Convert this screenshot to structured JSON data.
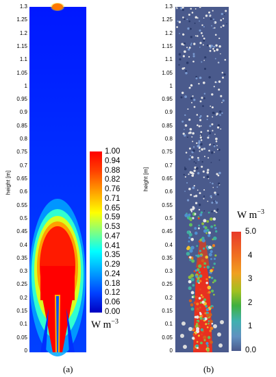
{
  "panel_a": {
    "caption": "(a)",
    "ylabel": "height [m]",
    "yticks": [
      "1.3",
      "1.25",
      "1.2",
      "1.15",
      "1.1",
      "1.05",
      "1",
      "0.95",
      "0.9",
      "0.85",
      "0.8",
      "0.75",
      "0.7",
      "0.65",
      "0.6",
      "0.55",
      "0.5",
      "0.45",
      "0.4",
      "0.35",
      "0.3",
      "0.25",
      "0.2",
      "0.15",
      "0.1",
      "0.05",
      "0"
    ],
    "colorbar_ticks": [
      "1.00",
      "0.94",
      "0.88",
      "0.82",
      "0.76",
      "0.71",
      "0.65",
      "0.59",
      "0.53",
      "0.47",
      "0.41",
      "0.35",
      "0.29",
      "0.24",
      "0.18",
      "0.12",
      "0.06",
      "0.00"
    ],
    "unit_base": "W m",
    "unit_exp": "−3"
  },
  "panel_b": {
    "caption": "(b)",
    "ylabel": "height [m]",
    "yticks": [
      "1.3",
      "1.25",
      "1.2",
      "1.15",
      "1.1",
      "1.05",
      "1",
      "0.95",
      "0.9",
      "0.85",
      "0.8",
      "0.75",
      "0.7",
      "0.65",
      "0.6",
      "0.55",
      "0.5",
      "0.45",
      "0.4",
      "0.35",
      "0.3",
      "0.25",
      "0.2",
      "0.15",
      "0.1",
      "0.05",
      "0"
    ],
    "colorbar_ticks": [
      "5.0",
      "4",
      "3",
      "2",
      "1",
      "0.0"
    ],
    "unit_base": "W m",
    "unit_exp": "−3"
  }
}
